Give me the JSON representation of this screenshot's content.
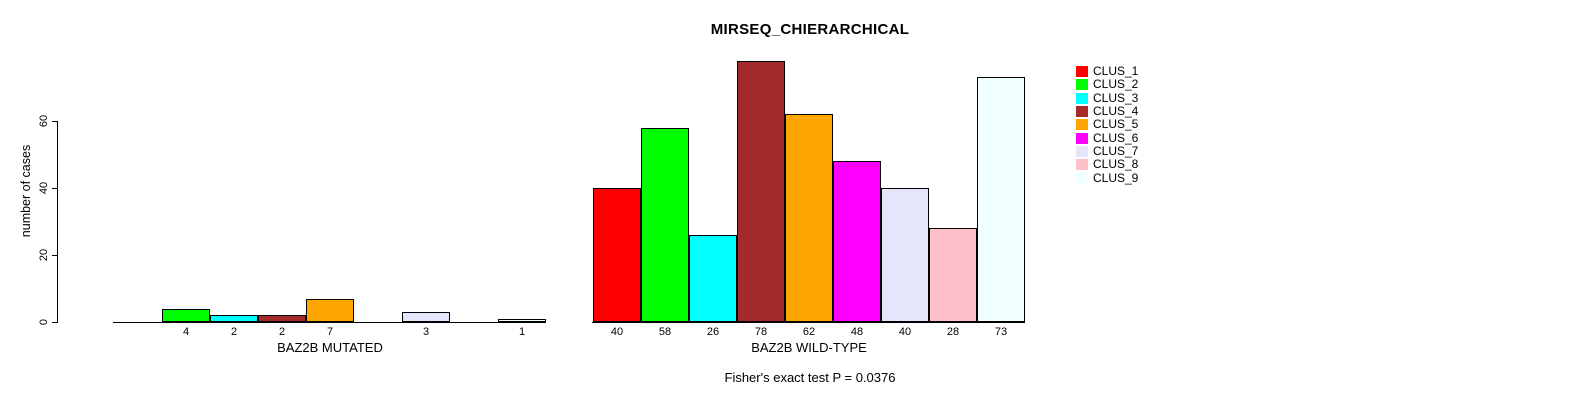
{
  "chart_data": {
    "type": "bar",
    "title": "MIRSEQ_CHIERARCHICAL",
    "ylabel": "number of cases",
    "ylim": [
      0,
      79
    ],
    "yticks": [
      0,
      20,
      40,
      60
    ],
    "grid": false,
    "legend_position": "right",
    "categories": [
      "CLUS_1",
      "CLUS_2",
      "CLUS_3",
      "CLUS_4",
      "CLUS_5",
      "CLUS_6",
      "CLUS_7",
      "CLUS_8",
      "CLUS_9"
    ],
    "colors": [
      "#FF0000",
      "#00FF00",
      "#00FFFF",
      "#A52A2A",
      "#FFA500",
      "#FF00FF",
      "#E6E6FA",
      "#FFC0CB",
      "#F0FFFF"
    ],
    "groups": [
      {
        "label": "BAZ2B MUTATED",
        "values": [
          0,
          4,
          2,
          2,
          7,
          0,
          3,
          0,
          1
        ]
      },
      {
        "label": "BAZ2B WILD-TYPE",
        "values": [
          40,
          58,
          26,
          78,
          62,
          48,
          40,
          28,
          73
        ]
      }
    ],
    "annotation": "Fisher's exact test P = 0.0376"
  }
}
